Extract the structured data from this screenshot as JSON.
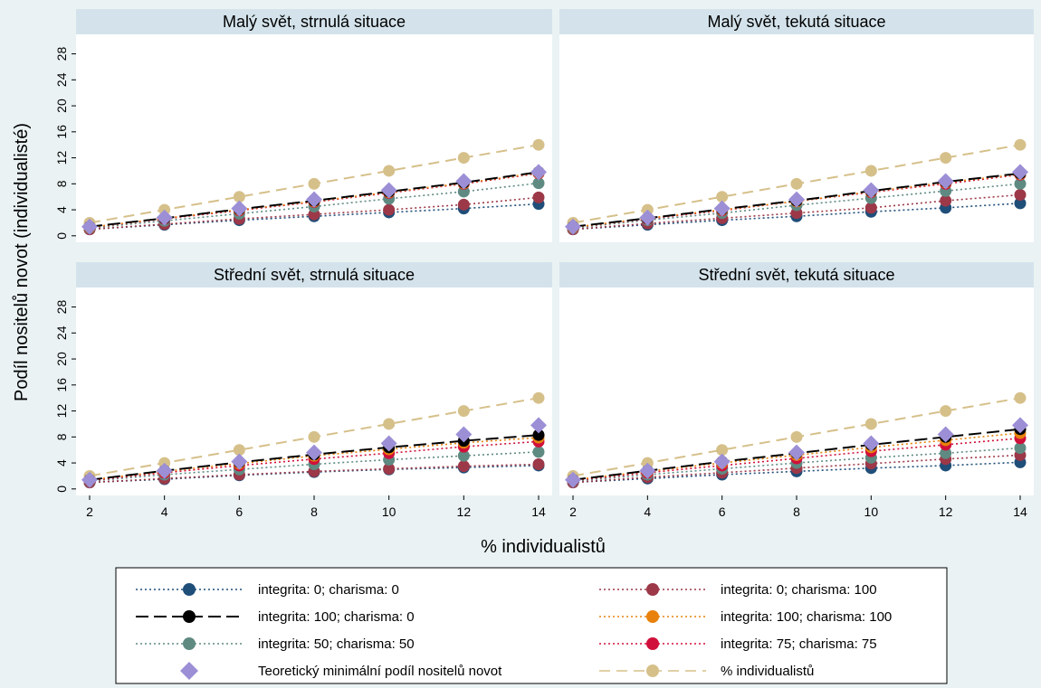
{
  "chart_data": {
    "type": "line",
    "ylabel": "Podíl nositelů novot (individualisté)",
    "xlabel": "% individualistů",
    "x": [
      2,
      4,
      6,
      8,
      10,
      12,
      14
    ],
    "xticks": [
      2,
      4,
      6,
      8,
      10,
      12,
      14
    ],
    "yticks": [
      0,
      4,
      8,
      12,
      16,
      20,
      24,
      28
    ],
    "ylim": [
      -1,
      31
    ],
    "xlim": [
      1.6,
      14.6
    ],
    "legend_position": "bottom",
    "series": [
      {
        "key": "s0_0",
        "name": "integrita: 0; charisma: 0",
        "color": "#1f4e79",
        "dash": "dot",
        "marker": "circle"
      },
      {
        "key": "s100_0",
        "name": "integrita: 100; charisma: 0",
        "color": "#000000",
        "dash": "longdash",
        "marker": "circle"
      },
      {
        "key": "s50_50",
        "name": "integrita: 50; charisma: 50",
        "color": "#5f8a82",
        "dash": "dot",
        "marker": "circle"
      },
      {
        "key": "theory",
        "name": "Teoretický minimální podíl nositelů novot",
        "color": "#9c8fd6",
        "dash": "none",
        "marker": "diamond"
      },
      {
        "key": "s0_100",
        "name": "integrita: 0; charisma: 100",
        "color": "#9c3848",
        "dash": "dot",
        "marker": "circle"
      },
      {
        "key": "s100_100",
        "name": "integrita: 100; charisma: 100",
        "color": "#e8820c",
        "dash": "dot",
        "marker": "circle"
      },
      {
        "key": "s75_75",
        "name": "integrita: 75; charisma: 75",
        "color": "#d0103a",
        "dash": "dot",
        "marker": "circle"
      },
      {
        "key": "pct",
        "name": "% individualistů",
        "color": "#d6c08a",
        "dash": "dash",
        "marker": "circle"
      }
    ],
    "panels": [
      {
        "title": "Malý svět, strnulá situace",
        "values": {
          "s0_0": [
            1.0,
            1.7,
            2.4,
            3.0,
            3.6,
            4.2,
            4.9
          ],
          "s0_100": [
            1.0,
            1.8,
            2.6,
            3.3,
            4.0,
            4.8,
            5.9
          ],
          "s50_50": [
            1.2,
            2.3,
            3.4,
            4.5,
            5.7,
            6.8,
            8.1
          ],
          "s75_75": [
            1.3,
            2.6,
            3.9,
            5.2,
            6.6,
            8.0,
            9.6
          ],
          "s100_100": [
            1.3,
            2.7,
            4.0,
            5.3,
            6.7,
            8.1,
            9.7
          ],
          "s100_0": [
            1.4,
            2.7,
            4.1,
            5.4,
            6.8,
            8.2,
            9.8
          ],
          "theory": [
            1.4,
            2.8,
            4.2,
            5.6,
            7.0,
            8.4,
            9.8
          ],
          "pct": [
            2,
            4,
            6,
            8,
            10,
            12,
            14
          ]
        }
      },
      {
        "title": "Malý svět, tekutá situace",
        "values": {
          "s0_0": [
            1.0,
            1.7,
            2.4,
            3.0,
            3.7,
            4.3,
            5.0
          ],
          "s0_100": [
            1.0,
            1.9,
            2.7,
            3.5,
            4.3,
            5.4,
            6.3
          ],
          "s50_50": [
            1.2,
            2.4,
            3.5,
            4.7,
            5.8,
            6.9,
            8.0
          ],
          "s75_75": [
            1.3,
            2.6,
            3.9,
            5.3,
            6.7,
            8.0,
            9.4
          ],
          "s100_100": [
            1.3,
            2.7,
            4.0,
            5.3,
            6.8,
            8.2,
            9.5
          ],
          "s100_0": [
            1.4,
            2.7,
            4.1,
            5.4,
            6.9,
            8.3,
            9.6
          ],
          "theory": [
            1.4,
            2.8,
            4.2,
            5.6,
            7.0,
            8.4,
            9.8
          ],
          "pct": [
            2,
            4,
            6,
            8,
            10,
            12,
            14
          ]
        }
      },
      {
        "title": "Střední svět, strnulá situace",
        "values": {
          "s0_0": [
            1.0,
            1.5,
            2.1,
            2.6,
            3.0,
            3.3,
            3.6
          ],
          "s0_100": [
            1.0,
            1.6,
            2.2,
            2.7,
            3.1,
            3.5,
            3.8
          ],
          "s50_50": [
            1.2,
            2.2,
            3.0,
            3.8,
            4.5,
            5.1,
            5.7
          ],
          "s75_75": [
            1.3,
            2.5,
            3.6,
            4.6,
            5.5,
            6.5,
            7.3
          ],
          "s100_100": [
            1.4,
            2.7,
            3.9,
            5.1,
            6.1,
            7.1,
            7.9
          ],
          "s100_0": [
            1.4,
            2.8,
            4.1,
            5.3,
            6.4,
            7.4,
            8.3
          ],
          "theory": [
            1.4,
            2.8,
            4.2,
            5.6,
            7.0,
            8.4,
            9.8
          ],
          "pct": [
            2,
            4,
            6,
            8,
            10,
            12,
            14
          ]
        }
      },
      {
        "title": "Střední svět, tekutá situace",
        "values": {
          "s0_0": [
            1.0,
            1.6,
            2.2,
            2.7,
            3.2,
            3.6,
            4.1
          ],
          "s0_100": [
            1.0,
            1.8,
            2.5,
            3.2,
            3.9,
            4.6,
            5.2
          ],
          "s50_50": [
            1.2,
            2.2,
            3.1,
            4.0,
            4.8,
            5.5,
            6.3
          ],
          "s75_75": [
            1.3,
            2.5,
            3.6,
            4.7,
            5.8,
            6.8,
            7.8
          ],
          "s100_100": [
            1.4,
            2.7,
            4.0,
            5.2,
            6.4,
            7.5,
            8.6
          ],
          "s100_0": [
            1.4,
            2.8,
            4.2,
            5.5,
            6.8,
            8.0,
            9.2
          ],
          "theory": [
            1.4,
            2.8,
            4.2,
            5.6,
            7.0,
            8.4,
            9.8
          ],
          "pct": [
            2,
            4,
            6,
            8,
            10,
            12,
            14
          ]
        }
      }
    ]
  }
}
